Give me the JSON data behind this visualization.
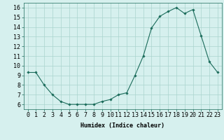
{
  "x": [
    0,
    1,
    2,
    3,
    4,
    5,
    6,
    7,
    8,
    9,
    10,
    11,
    12,
    13,
    14,
    15,
    16,
    17,
    18,
    19,
    20,
    21,
    22,
    23
  ],
  "y": [
    9.3,
    9.3,
    8.0,
    7.0,
    6.3,
    6.0,
    6.0,
    6.0,
    6.0,
    6.3,
    6.5,
    7.0,
    7.2,
    9.0,
    11.0,
    13.9,
    15.1,
    15.6,
    16.0,
    15.4,
    15.8,
    13.1,
    10.4,
    9.3
  ],
  "line_color": "#1a6b5a",
  "marker": "D",
  "marker_size": 1.8,
  "bg_color": "#d6f0ee",
  "grid_color": "#aad4ce",
  "xlabel": "Humidex (Indice chaleur)",
  "xlim": [
    -0.5,
    23.5
  ],
  "ylim": [
    5.5,
    16.5
  ],
  "yticks": [
    6,
    7,
    8,
    9,
    10,
    11,
    12,
    13,
    14,
    15,
    16
  ],
  "xticks": [
    0,
    1,
    2,
    3,
    4,
    5,
    6,
    7,
    8,
    9,
    10,
    11,
    12,
    13,
    14,
    15,
    16,
    17,
    18,
    19,
    20,
    21,
    22,
    23
  ],
  "label_fontsize": 6.0,
  "tick_fontsize": 6.0
}
